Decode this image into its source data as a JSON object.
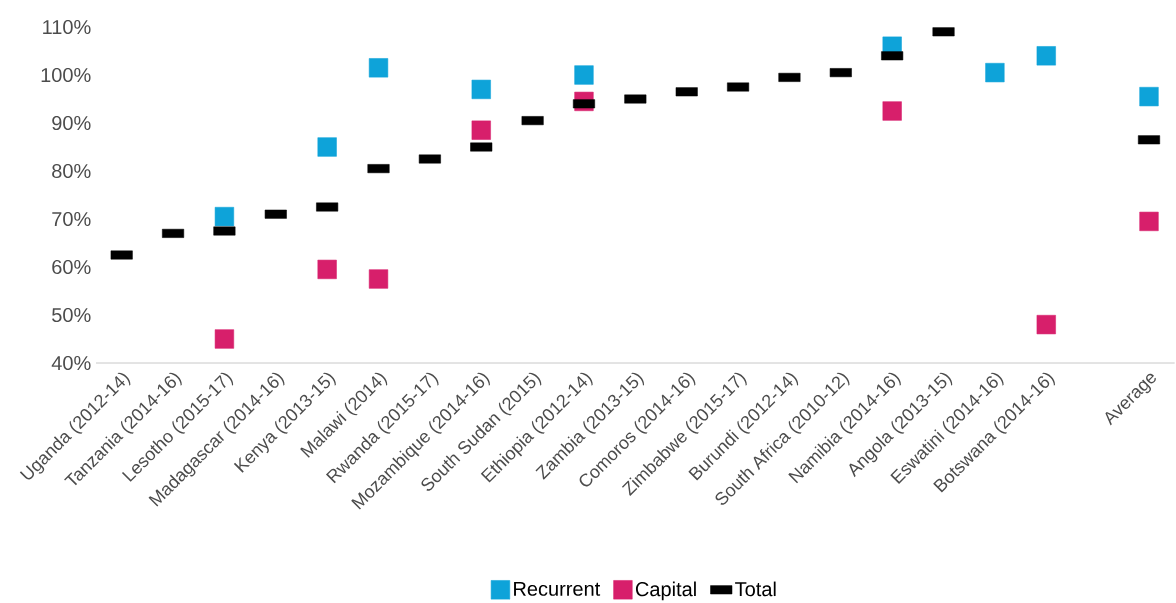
{
  "chart_data": {
    "type": "scatter",
    "categories": [
      "Uganda (2012-14)",
      "Tanzania (2014-16)",
      "Lesotho (2015-17)",
      "Madagascar (2014-16)",
      "Kenya (2013-15)",
      "Malawi (2014)",
      "Rwanda (2015-17)",
      "Mozambique (2014-16)",
      "South Sudan (2015)",
      "Ethiopia (2012-14)",
      "Zambia (2013-15)",
      "Comoros (2014-16)",
      "Zimbabwe (2015-17)",
      "Burundi (2012-14)",
      "South Africa (2010-12)",
      "Namibia (2014-16)",
      "Angola (2013-15)",
      "Eswatini (2014-16)",
      "Botswana (2014-16)",
      null,
      "Average"
    ],
    "series": [
      {
        "name": "Recurrent",
        "color": "#0ea3d9",
        "values": [
          null,
          null,
          70.5,
          null,
          85,
          101.5,
          null,
          97,
          null,
          100,
          null,
          null,
          null,
          null,
          null,
          106,
          null,
          100.5,
          104,
          null,
          95.5
        ]
      },
      {
        "name": "Capital",
        "color": "#d71f6b",
        "values": [
          null,
          null,
          45,
          null,
          59.5,
          57.5,
          null,
          88.5,
          null,
          94.5,
          null,
          null,
          null,
          null,
          null,
          92.5,
          null,
          null,
          48,
          null,
          69.5
        ]
      },
      {
        "name": "Total",
        "color": "#000000",
        "values": [
          62.5,
          67,
          67.5,
          71,
          72.5,
          80.5,
          82.5,
          85,
          90.5,
          94,
          95,
          96.5,
          97.5,
          99.5,
          100.5,
          104,
          109,
          null,
          null,
          null,
          86.5
        ]
      }
    ],
    "ylim": [
      40,
      110
    ],
    "yticks": [
      {
        "value": 40,
        "label": "40%"
      },
      {
        "value": 50,
        "label": "50%"
      },
      {
        "value": 60,
        "label": "60%"
      },
      {
        "value": 70,
        "label": "70%"
      },
      {
        "value": 80,
        "label": "80%"
      },
      {
        "value": 90,
        "label": "90%"
      },
      {
        "value": 100,
        "label": "100%"
      },
      {
        "value": 110,
        "label": "110%"
      }
    ],
    "marker": "square",
    "legend": "bottom"
  }
}
